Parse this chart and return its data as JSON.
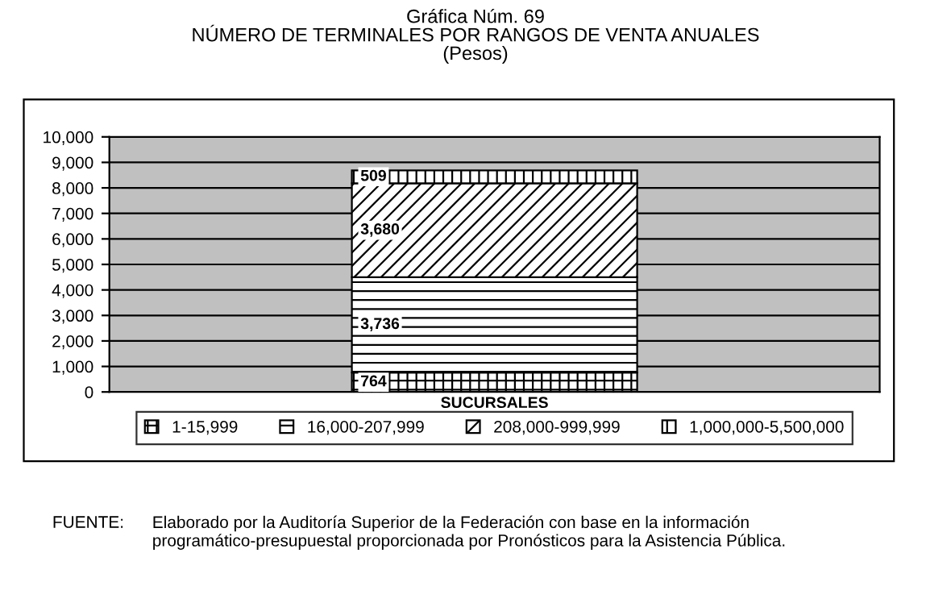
{
  "chart_data": {
    "type": "bar",
    "stacked": true,
    "title": "Gráfica Núm. 69\nNÚMERO DE TERMINALES POR RANGOS DE VENTA ANUALES\n(Pesos)",
    "categories": [
      "SUCURSALES"
    ],
    "series": [
      {
        "name": "1-15,999",
        "color": "#000000",
        "values": [
          764
        ],
        "value_labels": [
          "764"
        ]
      },
      {
        "name": "16,000-207,999",
        "color": "#000000",
        "values": [
          3736
        ],
        "value_labels": [
          "3,736"
        ]
      },
      {
        "name": "208,000-999,999",
        "color": "#000000",
        "values": [
          3680
        ],
        "value_labels": [
          "3,680"
        ]
      },
      {
        "name": "1,000,000-5,500,000",
        "color": "#000000",
        "values": [
          509
        ],
        "value_labels": [
          "509"
        ]
      }
    ],
    "ylim": [
      0,
      10000
    ],
    "yticks": [
      0,
      {
        "value": 1000,
        "label": "1,000"
      },
      {
        "value": 2000,
        "label": "2,000"
      },
      {
        "value": 3000,
        "label": "3,000"
      },
      {
        "value": 4000,
        "label": "4,000"
      },
      {
        "value": 5000,
        "label": "5,000"
      },
      {
        "value": 6000,
        "label": "6,000"
      },
      {
        "value": 7000,
        "label": "7,000"
      },
      {
        "value": 8000,
        "label": "8,000"
      },
      {
        "value": 9000,
        "label": "9,000"
      },
      {
        "value": 10000,
        "label": "10,000"
      }
    ],
    "grid": "y",
    "legend": "bottom",
    "annotations": [
      "FUENTE:",
      "Elaborado por la Auditoría Superior de la Federación con base en la información programático-presupuestal proporcionada por Pronósticos para la Asistencia Pública."
    ]
  }
}
